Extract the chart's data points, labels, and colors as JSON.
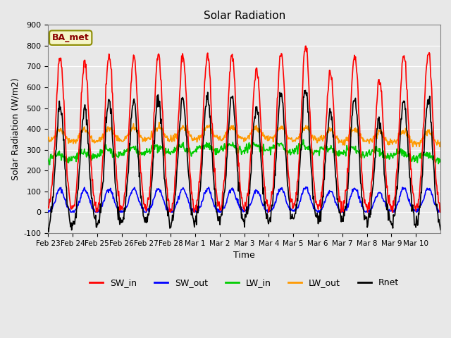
{
  "title": "Solar Radiation",
  "xlabel": "Time",
  "ylabel": "Solar Radiation (W/m2)",
  "ylim": [
    -100,
    900
  ],
  "yticks": [
    -100,
    0,
    100,
    200,
    300,
    400,
    500,
    600,
    700,
    800,
    900
  ],
  "xtick_labels": [
    "Feb 23",
    "Feb 24",
    "Feb 25",
    "Feb 26",
    "Feb 27",
    "Feb 28",
    "Mar 1",
    "Mar 2",
    "Mar 3",
    "Mar 4",
    "Mar 5",
    "Mar 6",
    "Mar 7",
    "Mar 8",
    "Mar 9",
    "Mar 10"
  ],
  "colors": {
    "SW_in": "#ff0000",
    "SW_out": "#0000ff",
    "LW_in": "#00cc00",
    "LW_out": "#ff9900",
    "Rnet": "#000000"
  },
  "legend_label": "BA_met",
  "background_color": "#e8e8e8",
  "linewidth": 1.2,
  "day_peaks": [
    750,
    720,
    750,
    740,
    760,
    755,
    755,
    755,
    690,
    755,
    800,
    670,
    760,
    630,
    760,
    770
  ]
}
